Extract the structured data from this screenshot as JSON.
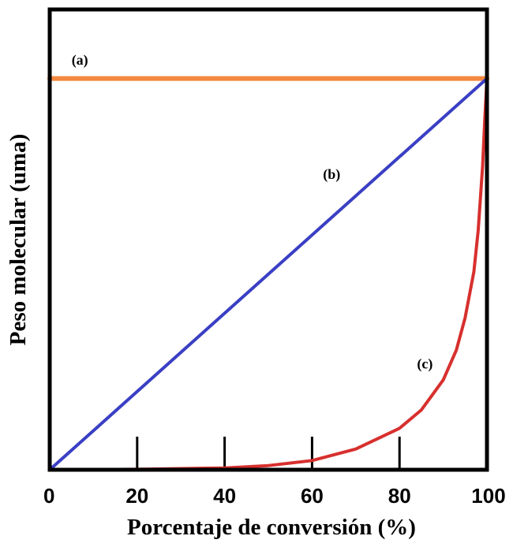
{
  "chart_data": {
    "type": "line",
    "title": "",
    "xlabel": "Porcentaje de conversión (%)",
    "ylabel": "Peso molecular (uma)",
    "xlim": [
      0,
      100
    ],
    "ylim": [
      0,
      100
    ],
    "x_ticks": [
      "0",
      "20",
      "40",
      "60",
      "80",
      "100"
    ],
    "grid": false,
    "series": [
      {
        "name": "(a)",
        "color": "#F4893F",
        "x": [
          0,
          100
        ],
        "y": [
          85,
          85
        ]
      },
      {
        "name": "(b)",
        "color": "#3A3FC4",
        "x": [
          0,
          100
        ],
        "y": [
          0,
          85
        ]
      },
      {
        "name": "(c)",
        "color": "#D7302E",
        "x": [
          0,
          20,
          40,
          50,
          60,
          70,
          80,
          85,
          90,
          93,
          95,
          97,
          98,
          99,
          99.5,
          100
        ],
        "y": [
          0.0,
          0.1,
          0.4,
          0.9,
          2.0,
          4.5,
          9.0,
          13.0,
          19.5,
          26.0,
          33.0,
          43.0,
          52.0,
          66.0,
          76.0,
          85.0
        ]
      }
    ]
  }
}
